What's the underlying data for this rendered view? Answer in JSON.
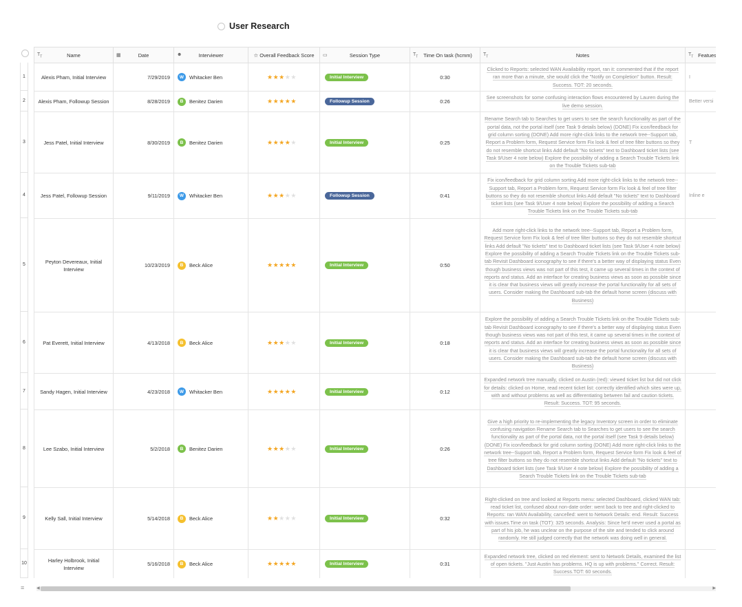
{
  "title": "User Research",
  "columns": {
    "name": "Name",
    "date": "Date",
    "interviewer": "Interviewer",
    "score": "Overall Feedback Score",
    "session": "Session Type",
    "time": "Time On task (hcmm)",
    "notes": "Notes",
    "features": "Featues"
  },
  "colors": {
    "initial_badge": "#7cc14b",
    "followup_badge": "#4a679a",
    "avatar_w": "#3d9ae8",
    "avatar_b_green": "#7cc14b",
    "avatar_b_yellow": "#f5c02e",
    "star": "#f3a623"
  },
  "rows": [
    {
      "num": "1",
      "name": "Alexis Pham, Initial Interview",
      "date": "7/29/2019",
      "initial": "W",
      "interviewer": "Whitacker Ben",
      "avatar_color": "#3d9ae8",
      "rating": 3,
      "session": "Initial Interview",
      "session_color": "#7cc14b",
      "time": "0:30",
      "notes": "Clicked to Reports: selected WAN Availability report, ran it: commented that if the report ran more than a minute, she would click the \"Notify on Completion\" button. Result: Success. TOT: 20 seconds.",
      "features": "I"
    },
    {
      "num": "2",
      "name": "Alexis Pham, Followup Session",
      "date": "8/28/2019",
      "initial": "B",
      "interviewer": "Benitez Darien",
      "avatar_color": "#7cc14b",
      "rating": 5,
      "session": "Followup Session",
      "session_color": "#4a679a",
      "time": "0:26",
      "notes": "See screenshots for some confusing interaction flows encountered by Lauren during the live demo session.",
      "features": "Better versi"
    },
    {
      "num": "3",
      "name": "Jess Patel, Initial Interview",
      "date": "8/30/2019",
      "initial": "B",
      "interviewer": "Benitez Darien",
      "avatar_color": "#7cc14b",
      "rating": 4,
      "session": "Initial Interview",
      "session_color": "#7cc14b",
      "time": "0:25",
      "notes": "Rename Search tab to Searches to get users to see the search functionality as part of the portal data, not the portal itself (see Task 9 details below) (DONE) Fix icon/feedback for grid column sorting (DONE) Add more right-click links to the network tree--Support tab, Report a Problem form, Request Service form Fix look & feel of tree filter buttons so they do not resemble shortcut links Add default \"No tickets\" text to Dashboard ticket lists (see Task 9/User 4 note below) Explore the possibility of adding a Search Trouble Tickets link on the Trouble Tickets sub-tab",
      "features": "T"
    },
    {
      "num": "4",
      "name": "Jess Patel, Followup Session",
      "date": "9/11/2019",
      "initial": "W",
      "interviewer": "Whitacker Ben",
      "avatar_color": "#3d9ae8",
      "rating": 3,
      "session": "Followup Session",
      "session_color": "#4a679a",
      "time": "0:41",
      "notes": "Fix icon/feedback for grid column sorting Add more right-click links to the network tree--Support tab, Report a Problem form, Request Service form Fix look & feel of tree filter buttons so they do not resemble shortcut links Add default \"No tickets\" text to Dashboard ticket lists (see Task 9/User 4 note below) Explore the possibility of adding a Search Trouble Tickets link on the Trouble Tickets sub-tab",
      "features": "Inline e"
    },
    {
      "num": "5",
      "name": "Peyton Devereaux, Initial Interview",
      "date": "10/23/2019",
      "initial": "B",
      "interviewer": "Beck Alice",
      "avatar_color": "#f5c02e",
      "rating": 5,
      "session": "Initial Interview",
      "session_color": "#7cc14b",
      "time": "0:50",
      "notes": "Add more right-click links to the network tree--Support tab, Report a Problem form, Request Service form Fix look & feel of tree filter buttons so they do not resemble shortcut links Add default \"No tickets\" text to Dashboard ticket lists (see Task 9/User 4 note below) Explore the possibility of adding a Search Trouble Tickets link on the Trouble Tickets sub-tab Revisit Dashboard iconography to see if there's a better way of displaying status Even though business views was not part of this test, it came up several times in the context of reports and status. Add an interface for creating business views as soon as possible since it is clear that business views will greatly increase the portal functionality for all sets of users. Consider making the Dashboard sub-tab the default home screen (discuss with Business)",
      "features": ""
    },
    {
      "num": "6",
      "name": "Pat Everett, Initial Interview",
      "date": "4/13/2018",
      "initial": "B",
      "interviewer": "Beck Alice",
      "avatar_color": "#f5c02e",
      "rating": 3,
      "session": "Initial Interview",
      "session_color": "#7cc14b",
      "time": "0:18",
      "notes": "Explore the possibility of adding a Search Trouble Tickets link on the Trouble Tickets sub-tab Revisit Dashboard iconography to see if there's a better way of displaying status Even though business views was not part of this test, it came up several times in the context of reports and status. Add an interface for creating business views as soon as possible since it is clear that business views will greatly increase the portal functionality for all sets of users. Consider making the Dashboard sub-tab the default home screen (discuss with Business)",
      "features": ""
    },
    {
      "num": "7",
      "name": "Sandy Hagen, Initial Interview",
      "date": "4/23/2018",
      "initial": "W",
      "interviewer": "Whitacker Ben",
      "avatar_color": "#3d9ae8",
      "rating": 5,
      "session": "Initial Interview",
      "session_color": "#7cc14b",
      "time": "0:12",
      "notes": "Expanded network tree manually, clicked on Austin (red): viewed ticket list but did not click for details: clicked on Home, read recent ticket list: correctly identified which sites were up, with and without problems as well as differentiating between fail and caution tickets. Result: Success. TOT: 95 seconds.",
      "features": ""
    },
    {
      "num": "8",
      "name": "Lee Szabo, Initial Interview",
      "date": "5/2/2018",
      "initial": "B",
      "interviewer": "Benitez Darien",
      "avatar_color": "#7cc14b",
      "rating": 3,
      "session": "Initial Interview",
      "session_color": "#7cc14b",
      "time": "0:26",
      "notes": "Give a high priority to re-implementing the legacy Inventory screen in order to eliminate confusing navigation Rename Search tab to Searches to get users to see the search functionality as part of the portal data, not the portal itself (see Task 9 details below) (DONE) Fix icon/feedback for grid column sorting (DONE) Add more right-click links to the network tree--Support tab, Report a Problem form, Request Service form Fix look & feel of tree filter buttons so they do not resemble shortcut links Add default \"No tickets\" text to Dashboard ticket lists (see Task 9/User 4 note below) Explore the possibility of adding a Search Trouble Tickets link on the Trouble Tickets sub-tab",
      "features": ""
    },
    {
      "num": "9",
      "name": "Kelly Sall, Initial Interview",
      "date": "5/14/2018",
      "initial": "B",
      "interviewer": "Beck Alice",
      "avatar_color": "#f5c02e",
      "rating": 2,
      "session": "Initial Interview",
      "session_color": "#7cc14b",
      "time": "0:32",
      "notes": "Right-clicked on tree and looked at Reports menu: selected Dashboard, clicked WAN tab: read ticket list, confused about non-date order: went back to tree and right-clicked to Reports: ran WAN Availability, cancelled: went to Network Details: end. Result: Success with issues.Time on task (TOT): 325 seconds. Analysis: Since he'd never used a portal as part of his job, he was unclear on the purpose of the site and tended to click around randomly. He still judged correctly that the network was doing well in general.",
      "features": ""
    },
    {
      "num": "10",
      "name": "Harley Holbrook, Initial Interview",
      "date": "5/16/2018",
      "initial": "B",
      "interviewer": "Beck Alice",
      "avatar_color": "#f5c02e",
      "rating": 5,
      "session": "Initial Interview",
      "session_color": "#7cc14b",
      "time": "0:31",
      "notes": "Expanded network tree, clicked on red element: sent to Network Details, examined the list of open tickets. \"Just Austin has problems. HQ is up with problems.\" Correct. Result: Success.TOT: 60 seconds.",
      "features": ""
    }
  ]
}
